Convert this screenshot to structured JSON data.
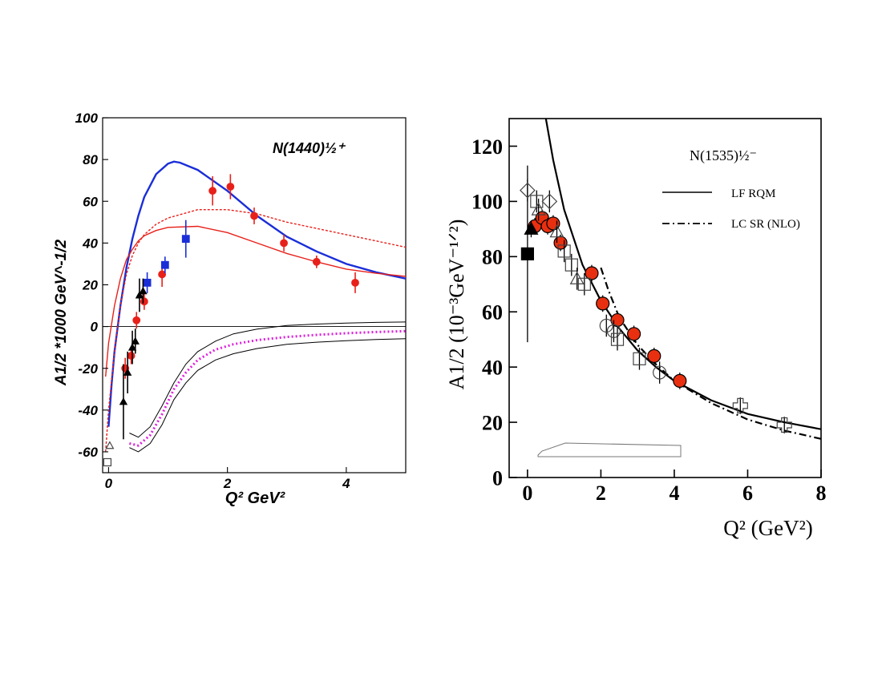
{
  "chart_data": [
    {
      "type": "line",
      "annotation": "N(1440)½⁺",
      "xlabel": "Q² GeV²",
      "ylabel": "A1/2 *1000 GeV^-1/2",
      "xlim": [
        -0.1,
        5
      ],
      "ylim": [
        -70,
        100
      ],
      "x_ticks": [
        0,
        2,
        4
      ],
      "y_ticks": [
        100,
        80,
        60,
        40,
        20,
        0,
        -20,
        -40,
        -60
      ],
      "zero_line": true,
      "series": [
        {
          "color": "#1a2ed8",
          "style": "solid",
          "x": [
            0,
            0.05,
            0.1,
            0.2,
            0.3,
            0.4,
            0.5,
            0.6,
            0.8,
            1.0,
            1.1,
            1.2,
            1.5,
            2.0,
            2.5,
            3.0,
            3.5,
            4.0,
            4.5,
            5.0
          ],
          "y": [
            -48,
            -28,
            -12,
            10,
            28,
            42,
            53,
            62,
            73,
            78,
            79,
            78.5,
            75,
            65,
            53,
            43,
            36,
            30,
            26,
            23
          ]
        },
        {
          "color": "#e8201a",
          "style": "solid",
          "x": [
            -0.05,
            0,
            0.1,
            0.2,
            0.3,
            0.4,
            0.5,
            0.6,
            0.8,
            1.0,
            1.5,
            2.0,
            2.5,
            3.0,
            3.5,
            4.0,
            4.5,
            5.0
          ],
          "y": [
            -24,
            -8,
            10,
            23,
            32,
            37,
            41,
            43.5,
            46,
            47.5,
            48,
            45,
            40,
            35,
            31,
            27.5,
            25.5,
            24
          ]
        },
        {
          "color": "#e8201a",
          "style": "dotted",
          "x": [
            -0.05,
            0,
            0.1,
            0.2,
            0.3,
            0.4,
            0.5,
            0.6,
            0.8,
            1.0,
            1.5,
            2.0,
            2.5,
            3.0,
            3.5,
            4.0,
            4.5,
            5.0
          ],
          "y": [
            -60,
            -40,
            -12,
            10,
            25,
            34,
            40,
            44,
            49,
            52,
            56,
            56,
            54,
            50,
            47,
            44,
            41,
            38
          ]
        },
        {
          "color": "#dd22dd",
          "style": "dotted",
          "x": [
            0.35,
            0.5,
            0.7,
            0.9,
            1.1,
            1.3,
            1.5,
            1.8,
            2.1,
            2.5,
            3.0,
            3.5,
            4.0,
            4.5,
            5.0
          ],
          "y": [
            -56,
            -57,
            -52,
            -42,
            -30,
            -22,
            -16,
            -11,
            -8.5,
            -6.5,
            -5,
            -4,
            -3.2,
            -2.6,
            -2.2
          ]
        },
        {
          "color": "#000000",
          "style": "solid",
          "x": [
            0.35,
            0.5,
            0.7,
            0.9,
            1.1,
            1.3,
            1.5,
            1.8,
            2.1,
            2.5,
            3.0,
            3.5,
            4.0,
            4.5,
            5.0
          ],
          "y": [
            -51,
            -53,
            -48,
            -38,
            -27,
            -18,
            -12,
            -7,
            -3.5,
            -1.2,
            0.5,
            1.2,
            1.7,
            2,
            2.2
          ]
        },
        {
          "color": "#000000",
          "style": "solid",
          "x": [
            0.35,
            0.5,
            0.7,
            0.9,
            1.1,
            1.3,
            1.5,
            1.8,
            2.1,
            2.5,
            3.0,
            3.5,
            4.0,
            4.5,
            5.0
          ],
          "y": [
            -58,
            -60,
            -56,
            -47,
            -35,
            -27,
            -21,
            -16,
            -13,
            -10.5,
            -8.5,
            -7.5,
            -6.8,
            -6.2,
            -5.8
          ]
        }
      ],
      "points": [
        {
          "x": 1.75,
          "y": 65,
          "err": 7,
          "marker": "circle",
          "color": "#e8201a"
        },
        {
          "x": 2.05,
          "y": 67,
          "err": 6,
          "marker": "circle",
          "color": "#e8201a"
        },
        {
          "x": 2.45,
          "y": 53,
          "err": 4,
          "marker": "circle",
          "color": "#e8201a"
        },
        {
          "x": 2.95,
          "y": 40,
          "err": 4,
          "marker": "circle",
          "color": "#e8201a"
        },
        {
          "x": 3.5,
          "y": 31,
          "err": 3,
          "marker": "circle",
          "color": "#e8201a"
        },
        {
          "x": 4.15,
          "y": 21,
          "err": 5,
          "marker": "circle",
          "color": "#e8201a"
        },
        {
          "x": 0.9,
          "y": 25,
          "err": 6,
          "marker": "circle",
          "color": "#e8201a"
        },
        {
          "x": 0.6,
          "y": 12,
          "err": 4,
          "marker": "circle",
          "color": "#e8201a"
        },
        {
          "x": 0.47,
          "y": 3,
          "err": 4,
          "marker": "circle",
          "color": "#e8201a"
        },
        {
          "x": 0.38,
          "y": -14,
          "err": 4,
          "marker": "circle",
          "color": "#e8201a"
        },
        {
          "x": 0.28,
          "y": -20,
          "err": 5,
          "marker": "circle",
          "color": "#e8201a"
        },
        {
          "x": 0.95,
          "y": 29.5,
          "err": 4,
          "marker": "square",
          "color": "#1a2ed8"
        },
        {
          "x": 1.3,
          "y": 42,
          "err": 9,
          "marker": "square",
          "color": "#1a2ed8"
        },
        {
          "x": 0.65,
          "y": 21,
          "err": 5,
          "marker": "square",
          "color": "#1a2ed8"
        },
        {
          "x": 0.25,
          "y": -36,
          "err": 18,
          "marker": "triangle",
          "color": "#000000"
        },
        {
          "x": 0.32,
          "y": -22,
          "err": 10,
          "marker": "triangle",
          "color": "#000000"
        },
        {
          "x": 0.4,
          "y": -10,
          "err": 8,
          "marker": "triangle",
          "color": "#000000"
        },
        {
          "x": 0.45,
          "y": -7,
          "err": 6,
          "marker": "triangle",
          "color": "#000000"
        },
        {
          "x": 0.52,
          "y": 15,
          "err": 8,
          "marker": "triangle",
          "color": "#000000"
        },
        {
          "x": 0.58,
          "y": 17,
          "err": 6,
          "marker": "triangle",
          "color": "#000000"
        },
        {
          "x": 0.02,
          "y": -57,
          "err": 0,
          "marker": "triangle-open",
          "color": "#000000"
        },
        {
          "x": -0.02,
          "y": -65,
          "err": 0,
          "marker": "square-open",
          "color": "#000000"
        }
      ]
    },
    {
      "type": "line",
      "annotation": "N(1535)½⁻",
      "xlabel": "Q² (GeV²)",
      "ylabel": "A1/2 (10⁻³GeV⁻¹ᐟ²)",
      "xlim": [
        -0.5,
        8
      ],
      "ylim": [
        0,
        130
      ],
      "x_ticks": [
        0,
        2,
        4,
        6,
        8
      ],
      "y_ticks": [
        0,
        20,
        40,
        60,
        80,
        100,
        120
      ],
      "legend": {
        "position": "top-right",
        "entries": [
          {
            "label": "LF RQM",
            "style": "solid"
          },
          {
            "label": "LC SR (NLO)",
            "style": "dashdot"
          }
        ]
      },
      "series": [
        {
          "name": "LF RQM",
          "color": "#000000",
          "style": "solid",
          "x": [
            0.5,
            0.7,
            1.0,
            1.5,
            2.0,
            2.5,
            3.0,
            3.5,
            4.0,
            5.0,
            6.0,
            7.0,
            8.0
          ],
          "y": [
            130,
            115,
            97,
            77,
            64,
            54,
            46,
            40,
            35,
            28,
            23,
            20,
            17.5
          ]
        },
        {
          "name": "LC SR (NLO)",
          "color": "#000000",
          "style": "dashdot",
          "x": [
            2.0,
            2.2,
            2.5,
            3.0,
            3.5,
            4.0,
            5.0,
            6.0,
            7.0,
            8.0
          ],
          "y": [
            76,
            68,
            58,
            48,
            41,
            35,
            27,
            21,
            17,
            14
          ]
        }
      ],
      "points": [
        {
          "x": 0.2,
          "y": 91,
          "err": 3,
          "marker": "circle",
          "color": "#e83010"
        },
        {
          "x": 0.4,
          "y": 94,
          "err": 3,
          "marker": "circle",
          "color": "#e83010"
        },
        {
          "x": 0.55,
          "y": 91,
          "err": 3,
          "marker": "circle",
          "color": "#e83010"
        },
        {
          "x": 0.7,
          "y": 92,
          "err": 3,
          "marker": "circle",
          "color": "#e83010"
        },
        {
          "x": 0.9,
          "y": 85,
          "err": 3,
          "marker": "circle",
          "color": "#e83010"
        },
        {
          "x": 1.75,
          "y": 74,
          "err": 3,
          "marker": "circle",
          "color": "#e83010"
        },
        {
          "x": 2.05,
          "y": 63,
          "err": 3,
          "marker": "circle",
          "color": "#e83010"
        },
        {
          "x": 2.45,
          "y": 57,
          "err": 3,
          "marker": "circle",
          "color": "#e83010"
        },
        {
          "x": 2.9,
          "y": 52,
          "err": 3,
          "marker": "circle",
          "color": "#e83010"
        },
        {
          "x": 3.45,
          "y": 44,
          "err": 3,
          "marker": "circle",
          "color": "#e83010"
        },
        {
          "x": 4.15,
          "y": 35,
          "err": 3,
          "marker": "circle",
          "color": "#e83010"
        },
        {
          "x": 0.0,
          "y": 81,
          "err": 32,
          "marker": "square",
          "color": "#000000"
        },
        {
          "x": 0.1,
          "y": 90,
          "err": 3,
          "marker": "triangle",
          "color": "#000000"
        },
        {
          "x": 0.0,
          "y": 104,
          "err": 4,
          "marker": "diamond-open",
          "color": "#000000"
        },
        {
          "x": 0.25,
          "y": 100,
          "err": 4,
          "marker": "square-open",
          "color": "#000000"
        },
        {
          "x": 0.6,
          "y": 100,
          "err": 4,
          "marker": "diamond-open",
          "color": "#000000"
        },
        {
          "x": 0.3,
          "y": 97,
          "err": 4,
          "marker": "triangle-open",
          "color": "#000000"
        },
        {
          "x": 0.8,
          "y": 89,
          "err": 4,
          "marker": "triangle-open",
          "color": "#000000"
        },
        {
          "x": 1.0,
          "y": 82,
          "err": 4,
          "marker": "square-open",
          "color": "#000000"
        },
        {
          "x": 1.2,
          "y": 77,
          "err": 4,
          "marker": "square-open",
          "color": "#000000"
        },
        {
          "x": 1.35,
          "y": 72,
          "err": 4,
          "marker": "triangle-open",
          "color": "#000000"
        },
        {
          "x": 1.55,
          "y": 70,
          "err": 4,
          "marker": "square-open",
          "color": "#000000"
        },
        {
          "x": 2.15,
          "y": 55,
          "err": 4,
          "marker": "circle-open",
          "color": "#000000"
        },
        {
          "x": 2.35,
          "y": 53,
          "err": 4,
          "marker": "circle-open",
          "color": "#000000"
        },
        {
          "x": 2.45,
          "y": 50,
          "err": 4,
          "marker": "square-open",
          "color": "#000000"
        },
        {
          "x": 3.05,
          "y": 43,
          "err": 4,
          "marker": "square-open",
          "color": "#000000"
        },
        {
          "x": 3.6,
          "y": 38,
          "err": 4,
          "marker": "circle-open",
          "color": "#000000"
        },
        {
          "x": 5.8,
          "y": 26,
          "err": 3,
          "marker": "cross-open",
          "color": "#000000"
        },
        {
          "x": 7.0,
          "y": 19,
          "err": 3,
          "marker": "cross-open",
          "color": "#000000"
        }
      ]
    }
  ]
}
